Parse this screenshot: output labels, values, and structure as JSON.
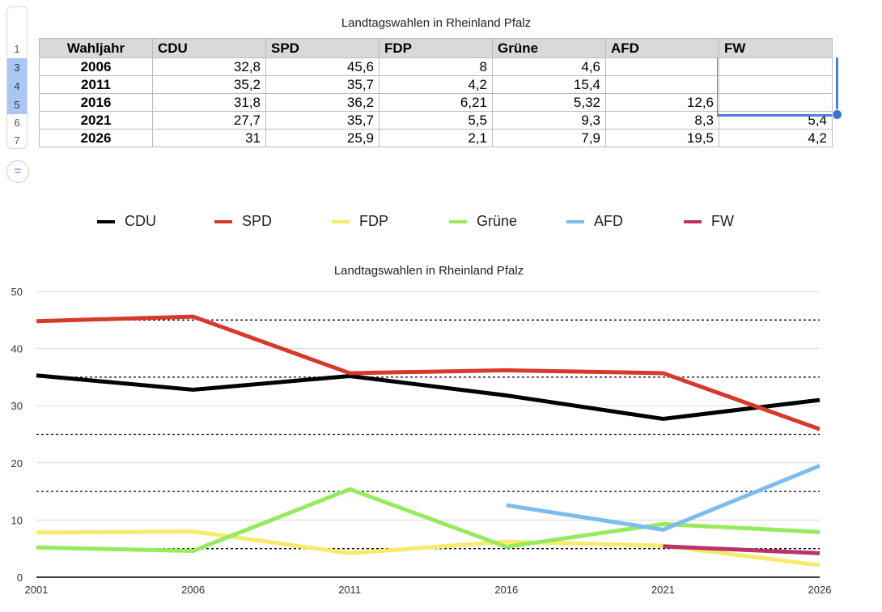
{
  "table": {
    "title": "Landtagswahlen in Rheinland Pfalz",
    "row_numbers": [
      "1",
      "3",
      "4",
      "5",
      "6",
      "7"
    ],
    "headers": [
      "Wahljahr",
      "CDU",
      "SPD",
      "FDP",
      "Grüne",
      "AFD",
      "FW"
    ],
    "rows": [
      [
        "2006",
        "32,8",
        "45,6",
        "8",
        "4,6",
        "",
        ""
      ],
      [
        "2011",
        "35,2",
        "35,7",
        "4,2",
        "15,4",
        "",
        ""
      ],
      [
        "2016",
        "31,8",
        "36,2",
        "6,21",
        "5,32",
        "12,6",
        ""
      ],
      [
        "2021",
        "27,7",
        "35,7",
        "5,5",
        "9,3",
        "8,3",
        "5,4"
      ],
      [
        "2026",
        "31",
        "25,9",
        "2,1",
        "7,9",
        "19,5",
        "4,2"
      ]
    ],
    "equals_button": "="
  },
  "chart_data": {
    "type": "line",
    "title": "Landtagswahlen in Rheinland Pfalz",
    "x": [
      2001,
      2006,
      2011,
      2016,
      2021,
      2026
    ],
    "ylim": [
      0,
      50
    ],
    "yticks": [
      0,
      10,
      20,
      30,
      40,
      50
    ],
    "grid": true,
    "legend": "top",
    "series": [
      {
        "name": "CDU",
        "color": "#000000",
        "values": [
          35.3,
          32.8,
          35.2,
          31.8,
          27.7,
          31
        ]
      },
      {
        "name": "SPD",
        "color": "#d63a2a",
        "values": [
          44.8,
          45.6,
          35.7,
          36.2,
          35.7,
          25.9
        ]
      },
      {
        "name": "FDP",
        "color": "#f7ea6c",
        "values": [
          7.8,
          8,
          4.2,
          6.21,
          5.5,
          2.1
        ]
      },
      {
        "name": "Grüne",
        "color": "#96ea5e",
        "values": [
          5.2,
          4.6,
          15.4,
          5.32,
          9.3,
          7.9
        ]
      },
      {
        "name": "AFD",
        "color": "#7dbcef",
        "values": [
          null,
          null,
          null,
          12.6,
          8.3,
          19.5
        ]
      },
      {
        "name": "FW",
        "color": "#b8336a",
        "values": [
          null,
          null,
          null,
          null,
          5.4,
          4.2
        ]
      }
    ]
  }
}
